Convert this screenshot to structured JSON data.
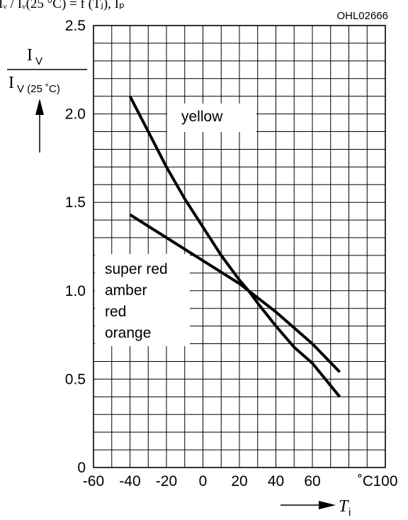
{
  "header": {
    "code": "OHL02666",
    "formula_cut": "Iᵥ / Iᵥ(25 °C) = f (Tⱼ), Iₚ"
  },
  "chart_data": {
    "type": "line",
    "x_axis": {
      "range": [
        -60,
        100
      ],
      "ticks": [
        -60,
        -40,
        -20,
        0,
        20,
        40,
        60,
        100
      ],
      "tick_labels": [
        "-60",
        "-40",
        "-20",
        "0",
        "20",
        "40",
        "60",
        "100"
      ],
      "unit": "˚C",
      "symbol": "T",
      "symbol_sub": "i"
    },
    "y_axis": {
      "range": [
        0,
        2.5
      ],
      "ticks": [
        0,
        0.5,
        1.0,
        1.5,
        2.0,
        2.5
      ],
      "tick_labels": [
        "0",
        "0.5",
        "1.0",
        "1.5",
        "2.0",
        "2.5"
      ],
      "label_num": "I",
      "label_num_sub": "V",
      "label_den": "I",
      "label_den_sub": "V (25 ˚C)"
    },
    "grid": true,
    "series": [
      {
        "name": "yellow",
        "labels": [
          "yellow"
        ],
        "x": [
          -40,
          -30,
          -20,
          -10,
          0,
          10,
          20,
          25,
          30,
          40,
          50,
          60,
          75
        ],
        "y": [
          2.1,
          1.9,
          1.7,
          1.52,
          1.36,
          1.2,
          1.06,
          1.0,
          0.93,
          0.8,
          0.68,
          0.59,
          0.4
        ]
      },
      {
        "name": "super red, amber, red, orange",
        "labels": [
          "super red",
          "amber",
          "red",
          "orange"
        ],
        "x": [
          -40,
          -20,
          0,
          20,
          25,
          40,
          60,
          75
        ],
        "y": [
          1.43,
          1.3,
          1.17,
          1.04,
          1.0,
          0.88,
          0.7,
          0.54
        ]
      }
    ]
  }
}
